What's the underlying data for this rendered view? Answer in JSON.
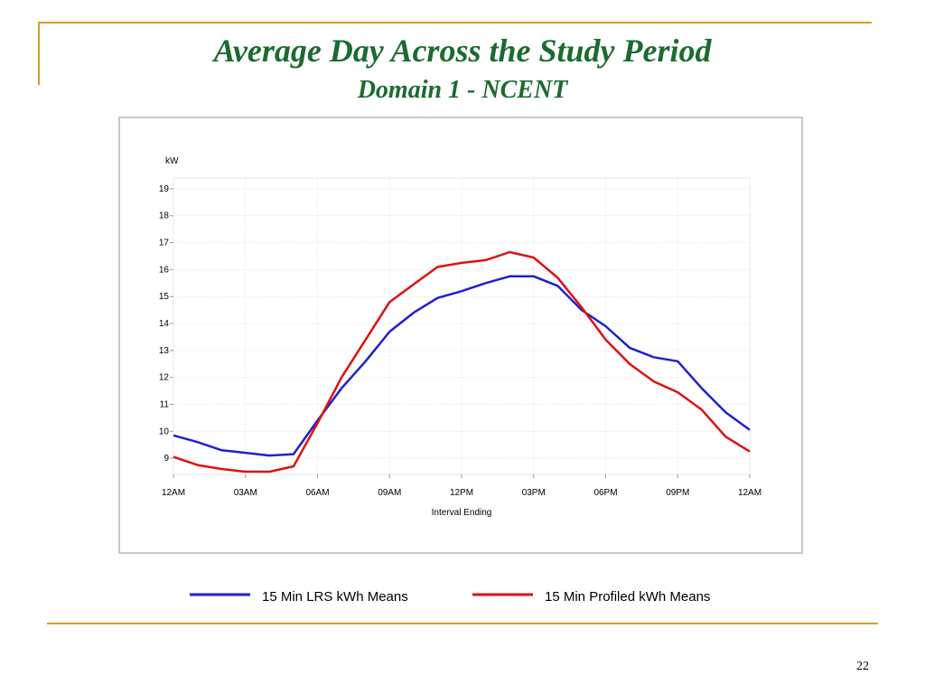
{
  "chart_data": {
    "type": "line",
    "title": "Average Day Across the Study Period",
    "subtitle": "Domain 1 - NCENT",
    "y_label": "kW",
    "x_label": "Interval Ending",
    "x": [
      0,
      1,
      2,
      3,
      4,
      5,
      6,
      7,
      8,
      9,
      10,
      11,
      12,
      13,
      14,
      15,
      16,
      17,
      18,
      19,
      20,
      21,
      22,
      23,
      24
    ],
    "series": [
      {
        "name": "15 Min LRS kWh Means",
        "color": "#1f1fd0",
        "values": [
          9.85,
          9.6,
          9.3,
          9.2,
          9.1,
          9.15,
          10.4,
          11.6,
          12.6,
          13.7,
          14.4,
          14.95,
          15.2,
          15.5,
          15.75,
          15.75,
          15.4,
          14.5,
          13.9,
          13.1,
          12.75,
          12.6,
          11.6,
          10.7,
          10.05
        ]
      },
      {
        "name": "15 Min Profiled kWh Means",
        "color": "#e01010",
        "values": [
          9.05,
          8.75,
          8.6,
          8.5,
          8.5,
          8.7,
          10.3,
          12.0,
          13.4,
          14.8,
          15.45,
          16.1,
          16.25,
          16.35,
          16.65,
          16.45,
          15.7,
          14.6,
          13.4,
          12.5,
          11.85,
          11.45,
          10.8,
          9.8,
          9.25
        ]
      }
    ],
    "xlim": [
      0,
      24
    ],
    "xticks": [
      {
        "value": 0,
        "label": "12AM"
      },
      {
        "value": 3,
        "label": "03AM"
      },
      {
        "value": 6,
        "label": "06AM"
      },
      {
        "value": 9,
        "label": "09AM"
      },
      {
        "value": 12,
        "label": "12PM"
      },
      {
        "value": 15,
        "label": "03PM"
      },
      {
        "value": 18,
        "label": "06PM"
      },
      {
        "value": 21,
        "label": "09PM"
      },
      {
        "value": 24,
        "label": "12AM"
      }
    ],
    "ylim": [
      8.4,
      19.4
    ],
    "yticks": [
      9,
      10,
      11,
      12,
      13,
      14,
      15,
      16,
      17,
      18,
      19
    ],
    "grid": true
  },
  "slide": {
    "page_number": "22"
  }
}
